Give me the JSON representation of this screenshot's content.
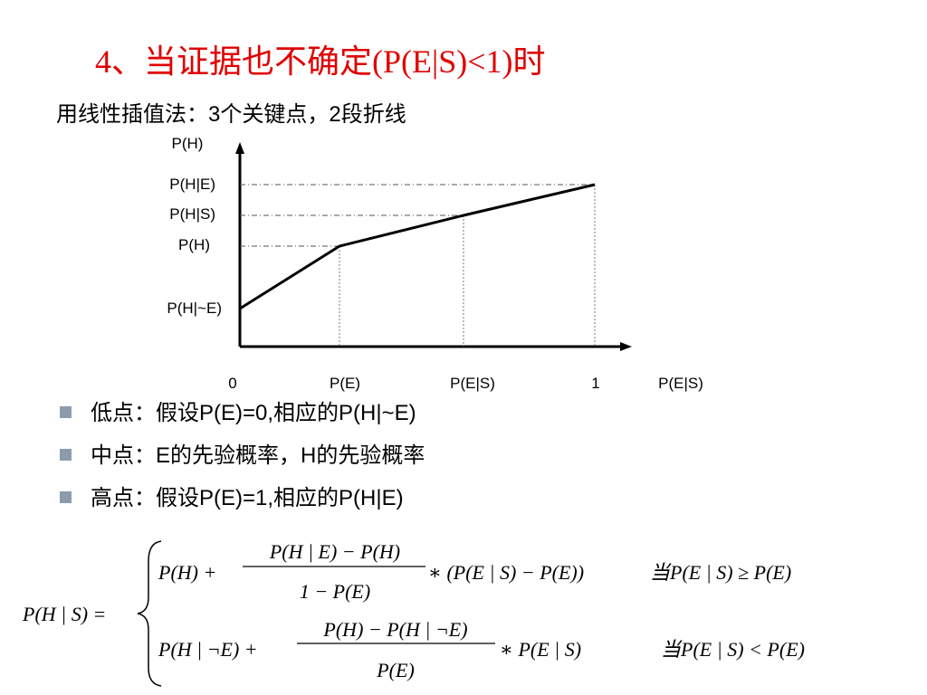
{
  "title": "4、当证据也不确定(P(E|S)<1)时",
  "subtitle": "用线性插值法：3个关键点，2段折线",
  "diagram": {
    "y_axis_label": "P(H)",
    "y_labels": [
      "P(H|E)",
      "P(H|S)",
      "P(H)",
      "P(H|~E)"
    ],
    "x_labels": [
      "0",
      "P(E)",
      "P(E|S)",
      "1"
    ],
    "x_axis_label": "P(E|S)"
  },
  "bullets": [
    "低点：假设P(E)=0,相应的P(H|~E)",
    "中点：E的先验概率，H的先验概率",
    "高点：假设P(E)=1,相应的P(H|E)"
  ],
  "formula": {
    "lhs": "P(H | S) =",
    "cases": [
      {
        "term": "P(H) +",
        "numerator": "P(H | E) − P(H)",
        "denominator": "1 − P(E)",
        "tail": "∗ (P(E | S) − P(E))",
        "condition": "当P(E | S) ≥ P(E)"
      },
      {
        "term": "P(H | ¬E) +",
        "numerator": "P(H) − P(H | ¬E)",
        "denominator": "P(E)",
        "tail": "∗ P(E | S)",
        "condition": "当P(E | S) < P(E)"
      }
    ]
  }
}
